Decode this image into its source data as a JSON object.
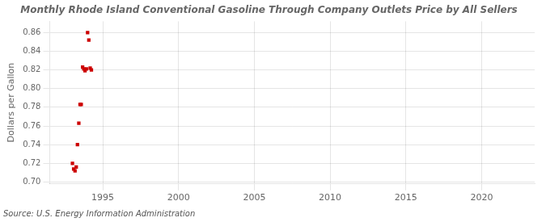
{
  "chart_data": {
    "type": "scatter",
    "title": "Monthly Rhode Island Conventional Gasoline Through Company Outlets Price by All Sellers",
    "y_label": "Dollars per Gallon",
    "annotations": [
      "Source: U.S. Energy Information Administration"
    ],
    "x": [
      1993.0,
      1993.08,
      1993.17,
      1993.25,
      1993.33,
      1993.42,
      1993.5,
      1993.58,
      1993.67,
      1993.75,
      1993.83,
      1993.92,
      1994.0,
      1994.08,
      1994.17,
      1994.25
    ],
    "values": [
      0.72,
      0.714,
      0.712,
      0.716,
      0.74,
      0.763,
      0.783,
      0.783,
      0.823,
      0.821,
      0.819,
      0.821,
      0.86,
      0.852,
      0.822,
      0.82
    ],
    "color": "#cc0000",
    "marker": "square",
    "xlim": [
      1991.5,
      2023.5
    ],
    "ylim": [
      0.698,
      0.872
    ],
    "xticks": [
      1995,
      2000,
      2005,
      2010,
      2015,
      2020
    ],
    "yticks": [
      {
        "value": 0.7,
        "label": "0.70"
      },
      0.72,
      0.74,
      0.76,
      0.78,
      {
        "value": 0.8,
        "label": "0.80"
      },
      0.82,
      0.84,
      0.86
    ],
    "grid": true
  }
}
